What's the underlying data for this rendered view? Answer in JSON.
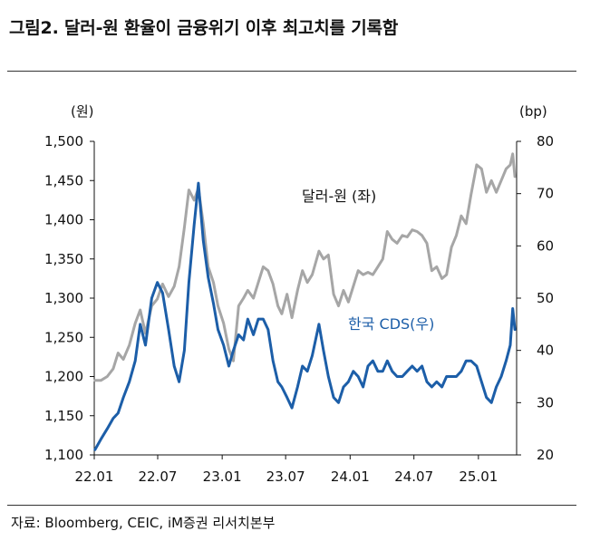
{
  "header": {
    "title": "그림2.   달러-원 환율이 금융위기 이후 최고치를 기록함"
  },
  "footer": {
    "source": "자료: Bloomberg, CEIC, iM증권 리서치본부"
  },
  "chart_data": {
    "type": "line",
    "x_ticks": [
      "22.01",
      "22.07",
      "23.01",
      "23.07",
      "24.01",
      "24.07",
      "25.01"
    ],
    "x_range": [
      "2022-01",
      "2025-04"
    ],
    "y_left": {
      "unit": "(원)",
      "ticks": [
        "1,500",
        "1,450",
        "1,400",
        "1,350",
        "1,300",
        "1,250",
        "1,200",
        "1,150",
        "1,100"
      ],
      "range": [
        1100,
        1500
      ]
    },
    "y_right": {
      "unit": "(bp)",
      "ticks": [
        "80",
        "70",
        "60",
        "50",
        "40",
        "30",
        "20"
      ],
      "range": [
        20,
        80
      ]
    },
    "series": [
      {
        "name": "달러-원 (좌)",
        "axis": "left",
        "color": "#a6a6a6",
        "points": [
          [
            "2022-01-03",
            1195
          ],
          [
            "2022-01-20",
            1195
          ],
          [
            "2022-02-07",
            1200
          ],
          [
            "2022-02-24",
            1210
          ],
          [
            "2022-03-10",
            1230
          ],
          [
            "2022-03-25",
            1222
          ],
          [
            "2022-04-11",
            1240
          ],
          [
            "2022-04-28",
            1268
          ],
          [
            "2022-05-12",
            1285
          ],
          [
            "2022-05-27",
            1255
          ],
          [
            "2022-06-14",
            1290
          ],
          [
            "2022-06-30",
            1299
          ],
          [
            "2022-07-15",
            1318
          ],
          [
            "2022-08-01",
            1302
          ],
          [
            "2022-08-17",
            1315
          ],
          [
            "2022-08-31",
            1340
          ],
          [
            "2022-09-15",
            1390
          ],
          [
            "2022-09-28",
            1438
          ],
          [
            "2022-10-13",
            1425
          ],
          [
            "2022-10-25",
            1440
          ],
          [
            "2022-11-08",
            1395
          ],
          [
            "2022-11-22",
            1340
          ],
          [
            "2022-12-07",
            1320
          ],
          [
            "2022-12-20",
            1290
          ],
          [
            "2023-01-05",
            1268
          ],
          [
            "2023-01-20",
            1235
          ],
          [
            "2023-02-02",
            1220
          ],
          [
            "2023-02-17",
            1290
          ],
          [
            "2023-03-03",
            1300
          ],
          [
            "2023-03-15",
            1310
          ],
          [
            "2023-03-31",
            1300
          ],
          [
            "2023-04-14",
            1320
          ],
          [
            "2023-04-28",
            1340
          ],
          [
            "2023-05-12",
            1335
          ],
          [
            "2023-05-26",
            1318
          ],
          [
            "2023-06-09",
            1290
          ],
          [
            "2023-06-20",
            1280
          ],
          [
            "2023-07-05",
            1305
          ],
          [
            "2023-07-19",
            1275
          ],
          [
            "2023-08-04",
            1310
          ],
          [
            "2023-08-18",
            1335
          ],
          [
            "2023-09-01",
            1320
          ],
          [
            "2023-09-15",
            1330
          ],
          [
            "2023-10-04",
            1360
          ],
          [
            "2023-10-17",
            1350
          ],
          [
            "2023-10-31",
            1355
          ],
          [
            "2023-11-15",
            1305
          ],
          [
            "2023-11-29",
            1290
          ],
          [
            "2023-12-13",
            1310
          ],
          [
            "2023-12-27",
            1295
          ],
          [
            "2024-01-10",
            1315
          ],
          [
            "2024-01-24",
            1335
          ],
          [
            "2024-02-07",
            1330
          ],
          [
            "2024-02-21",
            1333
          ],
          [
            "2024-03-06",
            1330
          ],
          [
            "2024-03-20",
            1340
          ],
          [
            "2024-04-03",
            1350
          ],
          [
            "2024-04-16",
            1385
          ],
          [
            "2024-04-30",
            1375
          ],
          [
            "2024-05-14",
            1370
          ],
          [
            "2024-05-29",
            1380
          ],
          [
            "2024-06-12",
            1378
          ],
          [
            "2024-06-26",
            1387
          ],
          [
            "2024-07-10",
            1385
          ],
          [
            "2024-07-24",
            1380
          ],
          [
            "2024-08-07",
            1370
          ],
          [
            "2024-08-21",
            1335
          ],
          [
            "2024-09-04",
            1340
          ],
          [
            "2024-09-19",
            1325
          ],
          [
            "2024-10-02",
            1330
          ],
          [
            "2024-10-16",
            1365
          ],
          [
            "2024-10-30",
            1380
          ],
          [
            "2024-11-13",
            1405
          ],
          [
            "2024-11-27",
            1395
          ],
          [
            "2024-12-11",
            1432
          ],
          [
            "2024-12-27",
            1470
          ],
          [
            "2025-01-10",
            1465
          ],
          [
            "2025-01-24",
            1435
          ],
          [
            "2025-02-07",
            1450
          ],
          [
            "2025-02-21",
            1435
          ],
          [
            "2025-03-07",
            1450
          ],
          [
            "2025-03-21",
            1465
          ],
          [
            "2025-04-02",
            1470
          ],
          [
            "2025-04-09",
            1484
          ],
          [
            "2025-04-15",
            1455
          ]
        ]
      },
      {
        "name": "한국 CDS(우)",
        "axis": "right",
        "color": "#1c5ea8",
        "points": [
          [
            "2022-01-03",
            21
          ],
          [
            "2022-01-20",
            23
          ],
          [
            "2022-02-07",
            25
          ],
          [
            "2022-02-24",
            27
          ],
          [
            "2022-03-10",
            28
          ],
          [
            "2022-03-25",
            31
          ],
          [
            "2022-04-11",
            34
          ],
          [
            "2022-04-28",
            38
          ],
          [
            "2022-05-12",
            45
          ],
          [
            "2022-05-27",
            41
          ],
          [
            "2022-06-14",
            50
          ],
          [
            "2022-06-30",
            53
          ],
          [
            "2022-07-15",
            51
          ],
          [
            "2022-08-01",
            44
          ],
          [
            "2022-08-17",
            37
          ],
          [
            "2022-08-31",
            34
          ],
          [
            "2022-09-15",
            40
          ],
          [
            "2022-09-28",
            53
          ],
          [
            "2022-10-13",
            64
          ],
          [
            "2022-10-25",
            72
          ],
          [
            "2022-11-08",
            61
          ],
          [
            "2022-11-22",
            54
          ],
          [
            "2022-12-07",
            49
          ],
          [
            "2022-12-20",
            44
          ],
          [
            "2023-01-05",
            41
          ],
          [
            "2023-01-20",
            37
          ],
          [
            "2023-02-02",
            40
          ],
          [
            "2023-02-17",
            43
          ],
          [
            "2023-03-03",
            42
          ],
          [
            "2023-03-15",
            46
          ],
          [
            "2023-03-31",
            43
          ],
          [
            "2023-04-14",
            46
          ],
          [
            "2023-04-28",
            46
          ],
          [
            "2023-05-12",
            44
          ],
          [
            "2023-05-26",
            38
          ],
          [
            "2023-06-09",
            34
          ],
          [
            "2023-06-20",
            33
          ],
          [
            "2023-07-05",
            31
          ],
          [
            "2023-07-19",
            29
          ],
          [
            "2023-08-04",
            33
          ],
          [
            "2023-08-18",
            37
          ],
          [
            "2023-09-01",
            36
          ],
          [
            "2023-09-15",
            39
          ],
          [
            "2023-10-04",
            45
          ],
          [
            "2023-10-17",
            40
          ],
          [
            "2023-10-31",
            35
          ],
          [
            "2023-11-15",
            31
          ],
          [
            "2023-11-29",
            30
          ],
          [
            "2023-12-13",
            33
          ],
          [
            "2023-12-27",
            34
          ],
          [
            "2024-01-10",
            36
          ],
          [
            "2024-01-24",
            35
          ],
          [
            "2024-02-07",
            33
          ],
          [
            "2024-02-21",
            37
          ],
          [
            "2024-03-06",
            38
          ],
          [
            "2024-03-20",
            36
          ],
          [
            "2024-04-03",
            36
          ],
          [
            "2024-04-16",
            38
          ],
          [
            "2024-04-30",
            36
          ],
          [
            "2024-05-14",
            35
          ],
          [
            "2024-05-29",
            35
          ],
          [
            "2024-06-12",
            36
          ],
          [
            "2024-06-26",
            37
          ],
          [
            "2024-07-10",
            36
          ],
          [
            "2024-07-24",
            37
          ],
          [
            "2024-08-07",
            34
          ],
          [
            "2024-08-21",
            33
          ],
          [
            "2024-09-04",
            34
          ],
          [
            "2024-09-19",
            33
          ],
          [
            "2024-10-02",
            35
          ],
          [
            "2024-10-16",
            35
          ],
          [
            "2024-10-30",
            35
          ],
          [
            "2024-11-13",
            36
          ],
          [
            "2024-11-27",
            38
          ],
          [
            "2024-12-11",
            38
          ],
          [
            "2024-12-27",
            37
          ],
          [
            "2025-01-10",
            34
          ],
          [
            "2025-01-24",
            31
          ],
          [
            "2025-02-07",
            30
          ],
          [
            "2025-02-21",
            33
          ],
          [
            "2025-03-07",
            35
          ],
          [
            "2025-03-21",
            38
          ],
          [
            "2025-04-02",
            41
          ],
          [
            "2025-04-09",
            48
          ],
          [
            "2025-04-15",
            44
          ]
        ]
      }
    ]
  }
}
